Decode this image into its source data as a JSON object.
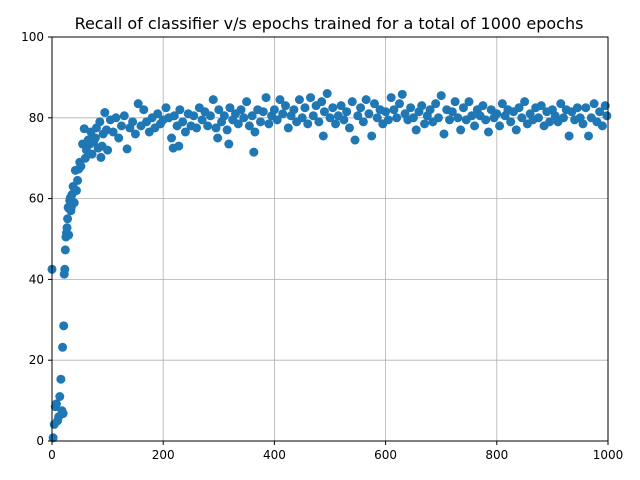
{
  "colors": {
    "points": "#1f77b4",
    "grid": "#b0b0b0",
    "axes": "#000000"
  },
  "chart_data": {
    "type": "scatter",
    "title": "Recall of classifier v/s epochs trained for a total of 1000 epochs",
    "xlabel": "",
    "ylabel": "",
    "xlim": [
      0,
      1000
    ],
    "ylim": [
      0,
      100
    ],
    "xticks": [
      0,
      200,
      400,
      600,
      800,
      1000
    ],
    "yticks": [
      0,
      20,
      40,
      60,
      80,
      100
    ],
    "grid": true,
    "legend": "none",
    "series": [
      {
        "points": [
          [
            0,
            42.5
          ],
          [
            2,
            0.8
          ],
          [
            4,
            4.1
          ],
          [
            6,
            8.5
          ],
          [
            8,
            9.2
          ],
          [
            10,
            5.0
          ],
          [
            12,
            6.0
          ],
          [
            14,
            11.0
          ],
          [
            16,
            15.3
          ],
          [
            18,
            7.5
          ],
          [
            19,
            23.2
          ],
          [
            20,
            6.8
          ],
          [
            21,
            28.5
          ],
          [
            22,
            41.3
          ],
          [
            23,
            42.5
          ],
          [
            24,
            47.3
          ],
          [
            25,
            50.5
          ],
          [
            26,
            51.5
          ],
          [
            27,
            52.8
          ],
          [
            28,
            55.0
          ],
          [
            29,
            57.8
          ],
          [
            30,
            51.0
          ],
          [
            31,
            57.5
          ],
          [
            32,
            59.5
          ],
          [
            33,
            60.2
          ],
          [
            34,
            57.0
          ],
          [
            35,
            58.0
          ],
          [
            36,
            61.0
          ],
          [
            38,
            63.0
          ],
          [
            40,
            59.0
          ],
          [
            42,
            67.0
          ],
          [
            44,
            62.0
          ],
          [
            46,
            64.5
          ],
          [
            48,
            67.3
          ],
          [
            50,
            69.0
          ],
          [
            52,
            68.0
          ],
          [
            55,
            73.5
          ],
          [
            58,
            77.3
          ],
          [
            60,
            70.0
          ],
          [
            62,
            72.0
          ],
          [
            65,
            74.5
          ],
          [
            68,
            73.5
          ],
          [
            70,
            76.5
          ],
          [
            72,
            71.0
          ],
          [
            75,
            74.0
          ],
          [
            78,
            75.0
          ],
          [
            80,
            77.5
          ],
          [
            83,
            72.5
          ],
          [
            86,
            79.0
          ],
          [
            88,
            70.2
          ],
          [
            90,
            73.0
          ],
          [
            92,
            76.0
          ],
          [
            95,
            81.3
          ],
          [
            98,
            77.0
          ],
          [
            100,
            72.0
          ],
          [
            105,
            79.5
          ],
          [
            110,
            76.5
          ],
          [
            115,
            80.0
          ],
          [
            120,
            75.0
          ],
          [
            125,
            78.0
          ],
          [
            130,
            80.5
          ],
          [
            135,
            72.3
          ],
          [
            140,
            77.5
          ],
          [
            145,
            79.0
          ],
          [
            150,
            76.0
          ],
          [
            155,
            83.5
          ],
          [
            160,
            78.0
          ],
          [
            165,
            82.0
          ],
          [
            170,
            79.0
          ],
          [
            175,
            76.5
          ],
          [
            180,
            80.0
          ],
          [
            185,
            77.5
          ],
          [
            190,
            81.0
          ],
          [
            195,
            78.5
          ],
          [
            200,
            79.5
          ],
          [
            205,
            82.5
          ],
          [
            210,
            80.0
          ],
          [
            215,
            75.0
          ],
          [
            218,
            72.5
          ],
          [
            220,
            80.5
          ],
          [
            225,
            78.0
          ],
          [
            228,
            73.0
          ],
          [
            230,
            82.0
          ],
          [
            235,
            79.0
          ],
          [
            240,
            76.5
          ],
          [
            245,
            81.0
          ],
          [
            250,
            78.0
          ],
          [
            255,
            80.5
          ],
          [
            260,
            77.5
          ],
          [
            265,
            82.5
          ],
          [
            270,
            79.5
          ],
          [
            275,
            81.5
          ],
          [
            280,
            78.0
          ],
          [
            285,
            80.5
          ],
          [
            290,
            84.5
          ],
          [
            295,
            77.5
          ],
          [
            298,
            75.0
          ],
          [
            300,
            82.0
          ],
          [
            305,
            79.0
          ],
          [
            310,
            80.5
          ],
          [
            315,
            77.0
          ],
          [
            318,
            73.5
          ],
          [
            320,
            82.5
          ],
          [
            325,
            79.5
          ],
          [
            330,
            81.0
          ],
          [
            335,
            78.5
          ],
          [
            340,
            82.0
          ],
          [
            345,
            80.0
          ],
          [
            350,
            84.0
          ],
          [
            355,
            78.0
          ],
          [
            360,
            80.5
          ],
          [
            363,
            71.5
          ],
          [
            365,
            76.5
          ],
          [
            370,
            82.0
          ],
          [
            375,
            79.0
          ],
          [
            380,
            81.5
          ],
          [
            385,
            85.0
          ],
          [
            390,
            78.5
          ],
          [
            395,
            80.5
          ],
          [
            400,
            82.0
          ],
          [
            405,
            79.5
          ],
          [
            410,
            84.5
          ],
          [
            415,
            81.0
          ],
          [
            420,
            83.0
          ],
          [
            425,
            77.5
          ],
          [
            430,
            80.5
          ],
          [
            435,
            82.0
          ],
          [
            440,
            79.0
          ],
          [
            445,
            84.5
          ],
          [
            450,
            80.0
          ],
          [
            455,
            82.5
          ],
          [
            460,
            78.5
          ],
          [
            465,
            85.0
          ],
          [
            470,
            80.5
          ],
          [
            475,
            83.0
          ],
          [
            480,
            79.0
          ],
          [
            485,
            84.0
          ],
          [
            488,
            75.5
          ],
          [
            490,
            81.5
          ],
          [
            495,
            86.0
          ],
          [
            500,
            80.0
          ],
          [
            505,
            82.5
          ],
          [
            510,
            78.5
          ],
          [
            515,
            80.5
          ],
          [
            520,
            83.0
          ],
          [
            525,
            79.5
          ],
          [
            530,
            81.5
          ],
          [
            535,
            77.5
          ],
          [
            540,
            84.0
          ],
          [
            545,
            74.5
          ],
          [
            550,
            80.5
          ],
          [
            555,
            82.5
          ],
          [
            560,
            79.0
          ],
          [
            565,
            84.5
          ],
          [
            570,
            81.0
          ],
          [
            575,
            75.5
          ],
          [
            580,
            83.5
          ],
          [
            585,
            80.0
          ],
          [
            590,
            82.0
          ],
          [
            595,
            78.5
          ],
          [
            600,
            81.5
          ],
          [
            605,
            79.5
          ],
          [
            610,
            85.0
          ],
          [
            615,
            82.0
          ],
          [
            620,
            80.0
          ],
          [
            625,
            83.5
          ],
          [
            630,
            85.8
          ],
          [
            635,
            81.0
          ],
          [
            640,
            79.5
          ],
          [
            645,
            82.5
          ],
          [
            650,
            80.0
          ],
          [
            655,
            77.0
          ],
          [
            660,
            81.5
          ],
          [
            665,
            83.0
          ],
          [
            670,
            78.5
          ],
          [
            675,
            80.5
          ],
          [
            680,
            82.0
          ],
          [
            685,
            79.0
          ],
          [
            690,
            83.5
          ],
          [
            695,
            80.0
          ],
          [
            700,
            85.5
          ],
          [
            705,
            76.0
          ],
          [
            710,
            82.0
          ],
          [
            715,
            79.5
          ],
          [
            720,
            81.5
          ],
          [
            725,
            84.0
          ],
          [
            730,
            80.0
          ],
          [
            735,
            77.0
          ],
          [
            740,
            82.5
          ],
          [
            745,
            79.5
          ],
          [
            750,
            84.0
          ],
          [
            755,
            80.5
          ],
          [
            760,
            78.0
          ],
          [
            765,
            82.0
          ],
          [
            770,
            80.5
          ],
          [
            775,
            83.0
          ],
          [
            780,
            79.5
          ],
          [
            785,
            76.5
          ],
          [
            790,
            82.0
          ],
          [
            795,
            80.0
          ],
          [
            800,
            81.0
          ],
          [
            805,
            78.0
          ],
          [
            810,
            83.5
          ],
          [
            815,
            80.5
          ],
          [
            820,
            82.0
          ],
          [
            825,
            79.0
          ],
          [
            830,
            81.5
          ],
          [
            835,
            77.0
          ],
          [
            840,
            82.5
          ],
          [
            845,
            80.0
          ],
          [
            850,
            84.0
          ],
          [
            855,
            78.5
          ],
          [
            860,
            81.0
          ],
          [
            865,
            79.5
          ],
          [
            870,
            82.5
          ],
          [
            875,
            80.0
          ],
          [
            880,
            83.0
          ],
          [
            885,
            78.0
          ],
          [
            890,
            81.5
          ],
          [
            895,
            79.0
          ],
          [
            900,
            82.0
          ],
          [
            905,
            80.5
          ],
          [
            910,
            79.0
          ],
          [
            915,
            83.5
          ],
          [
            920,
            80.0
          ],
          [
            925,
            82.0
          ],
          [
            930,
            75.5
          ],
          [
            935,
            81.5
          ],
          [
            940,
            79.5
          ],
          [
            945,
            82.5
          ],
          [
            950,
            80.0
          ],
          [
            955,
            78.5
          ],
          [
            960,
            82.5
          ],
          [
            965,
            75.5
          ],
          [
            970,
            80.0
          ],
          [
            975,
            83.5
          ],
          [
            980,
            79.0
          ],
          [
            985,
            81.5
          ],
          [
            990,
            78.0
          ],
          [
            995,
            83.0
          ],
          [
            998,
            80.5
          ]
        ]
      }
    ]
  }
}
